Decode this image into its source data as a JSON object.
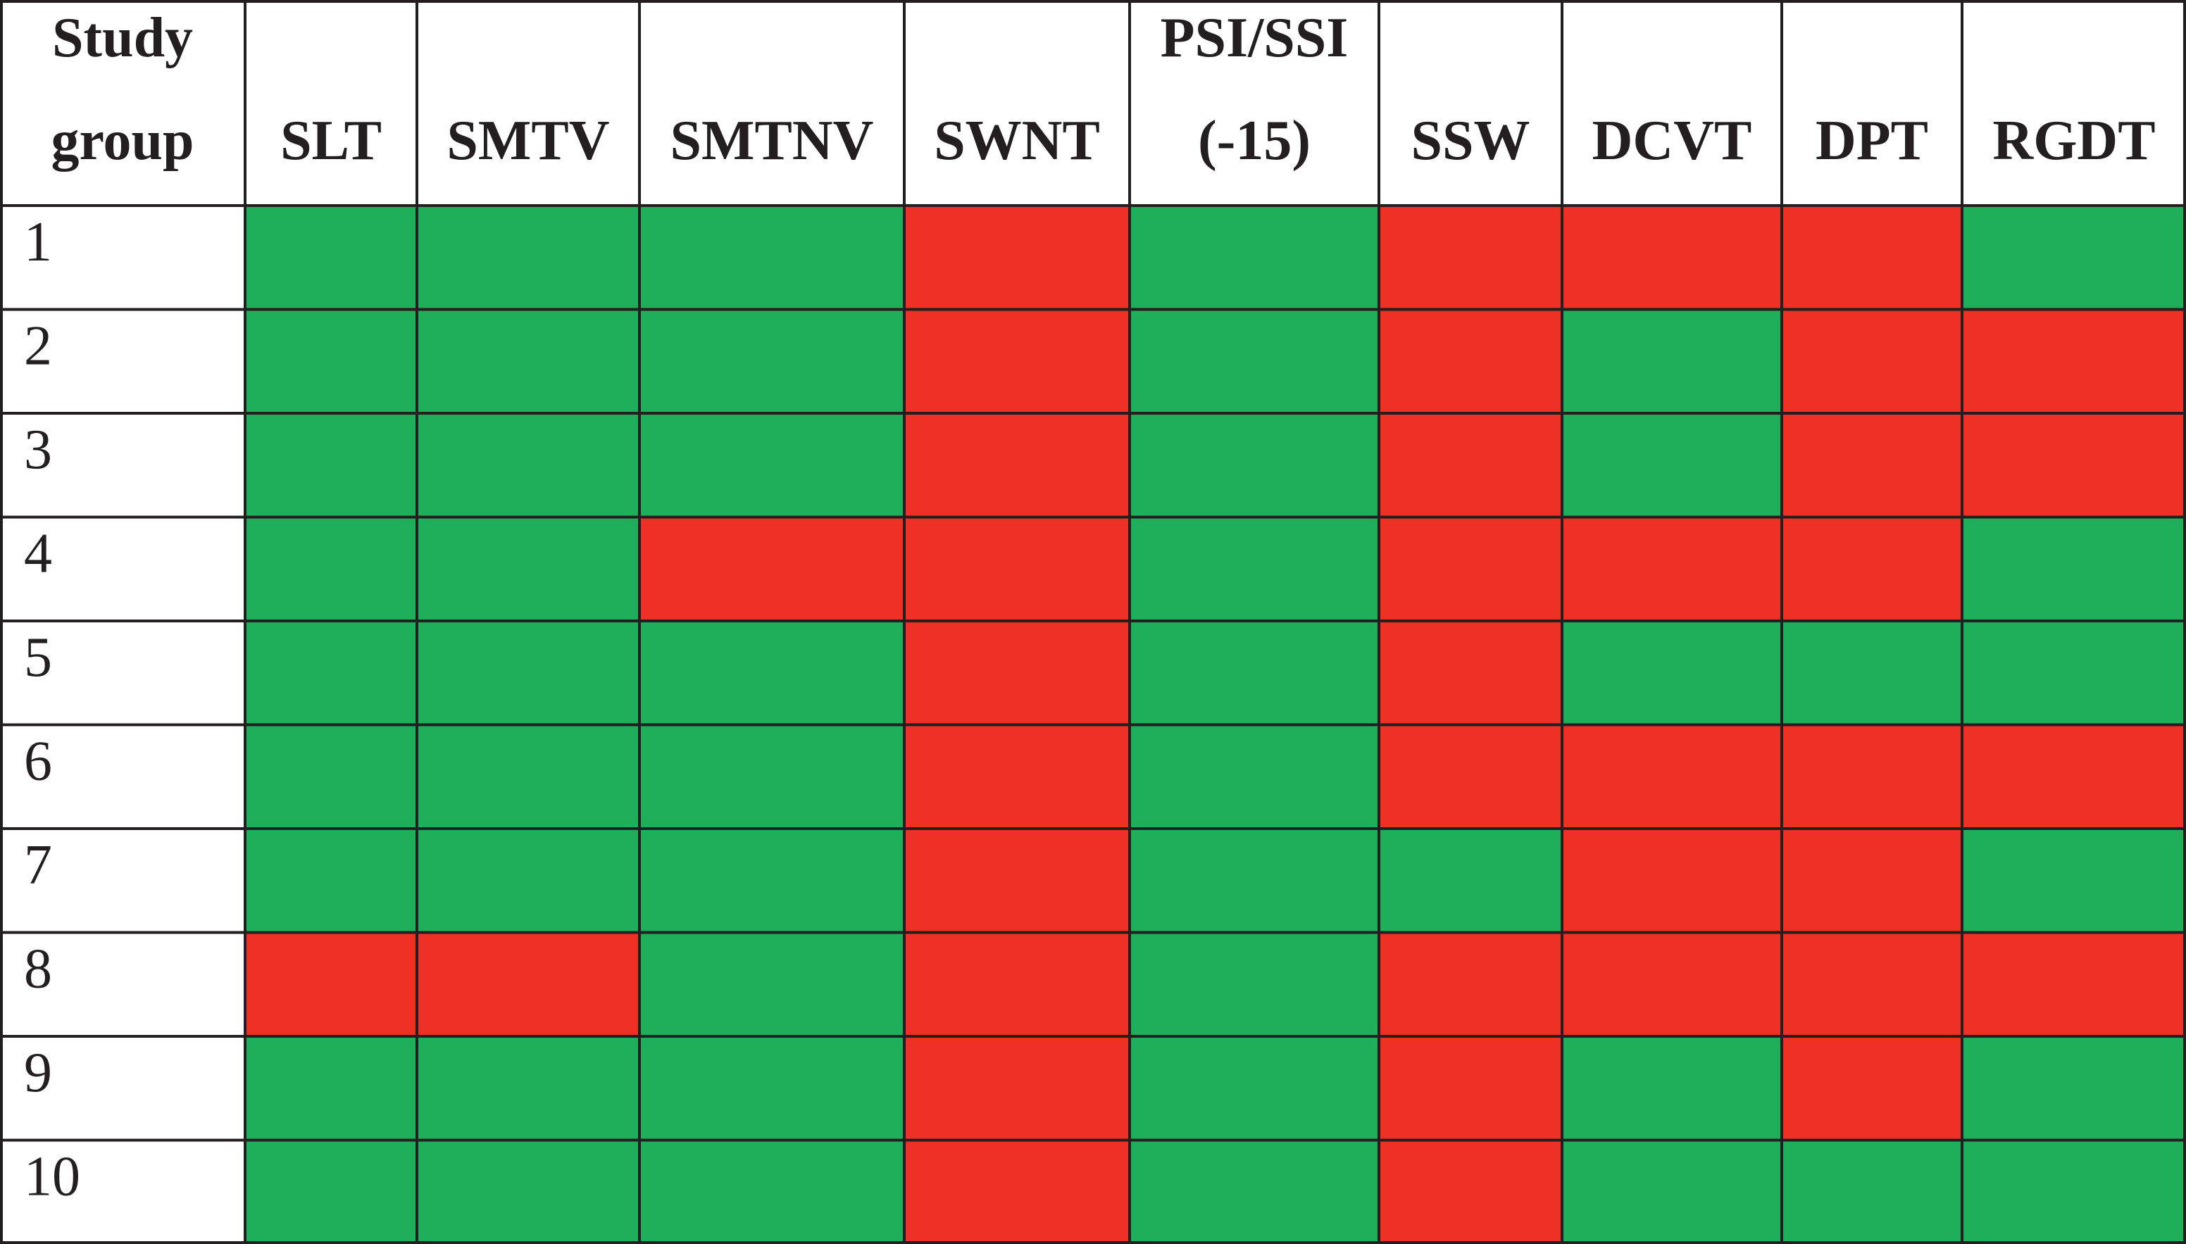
{
  "chart_data": {
    "type": "heatmap",
    "row_header": [
      "Study",
      "group"
    ],
    "columns": [
      {
        "label_lines": [
          "SLT"
        ]
      },
      {
        "label_lines": [
          "SMTV"
        ]
      },
      {
        "label_lines": [
          "SMTNV"
        ]
      },
      {
        "label_lines": [
          "SWNT"
        ]
      },
      {
        "label_lines": [
          "PSI/SSI",
          "(-15)"
        ]
      },
      {
        "label_lines": [
          "SSW"
        ]
      },
      {
        "label_lines": [
          "DCVT"
        ]
      },
      {
        "label_lines": [
          "DPT"
        ]
      },
      {
        "label_lines": [
          "RGDT"
        ]
      }
    ],
    "rows": [
      "1",
      "2",
      "3",
      "4",
      "5",
      "6",
      "7",
      "8",
      "9",
      "10"
    ],
    "values": [
      [
        "green",
        "green",
        "green",
        "red",
        "green",
        "red",
        "red",
        "red",
        "green"
      ],
      [
        "green",
        "green",
        "green",
        "red",
        "green",
        "red",
        "green",
        "red",
        "red"
      ],
      [
        "green",
        "green",
        "green",
        "red",
        "green",
        "red",
        "green",
        "red",
        "red"
      ],
      [
        "green",
        "green",
        "red",
        "red",
        "green",
        "red",
        "red",
        "red",
        "green"
      ],
      [
        "green",
        "green",
        "green",
        "red",
        "green",
        "red",
        "green",
        "green",
        "green"
      ],
      [
        "green",
        "green",
        "green",
        "red",
        "green",
        "red",
        "red",
        "red",
        "red"
      ],
      [
        "green",
        "green",
        "green",
        "red",
        "green",
        "green",
        "red",
        "red",
        "green"
      ],
      [
        "red",
        "red",
        "green",
        "red",
        "green",
        "red",
        "red",
        "red",
        "red"
      ],
      [
        "green",
        "green",
        "green",
        "red",
        "green",
        "red",
        "green",
        "red",
        "green"
      ],
      [
        "green",
        "green",
        "green",
        "red",
        "green",
        "red",
        "green",
        "green",
        "green"
      ]
    ],
    "colors": {
      "green": "#1faf5a",
      "red": "#ee3124",
      "grid": "#231f20"
    }
  }
}
